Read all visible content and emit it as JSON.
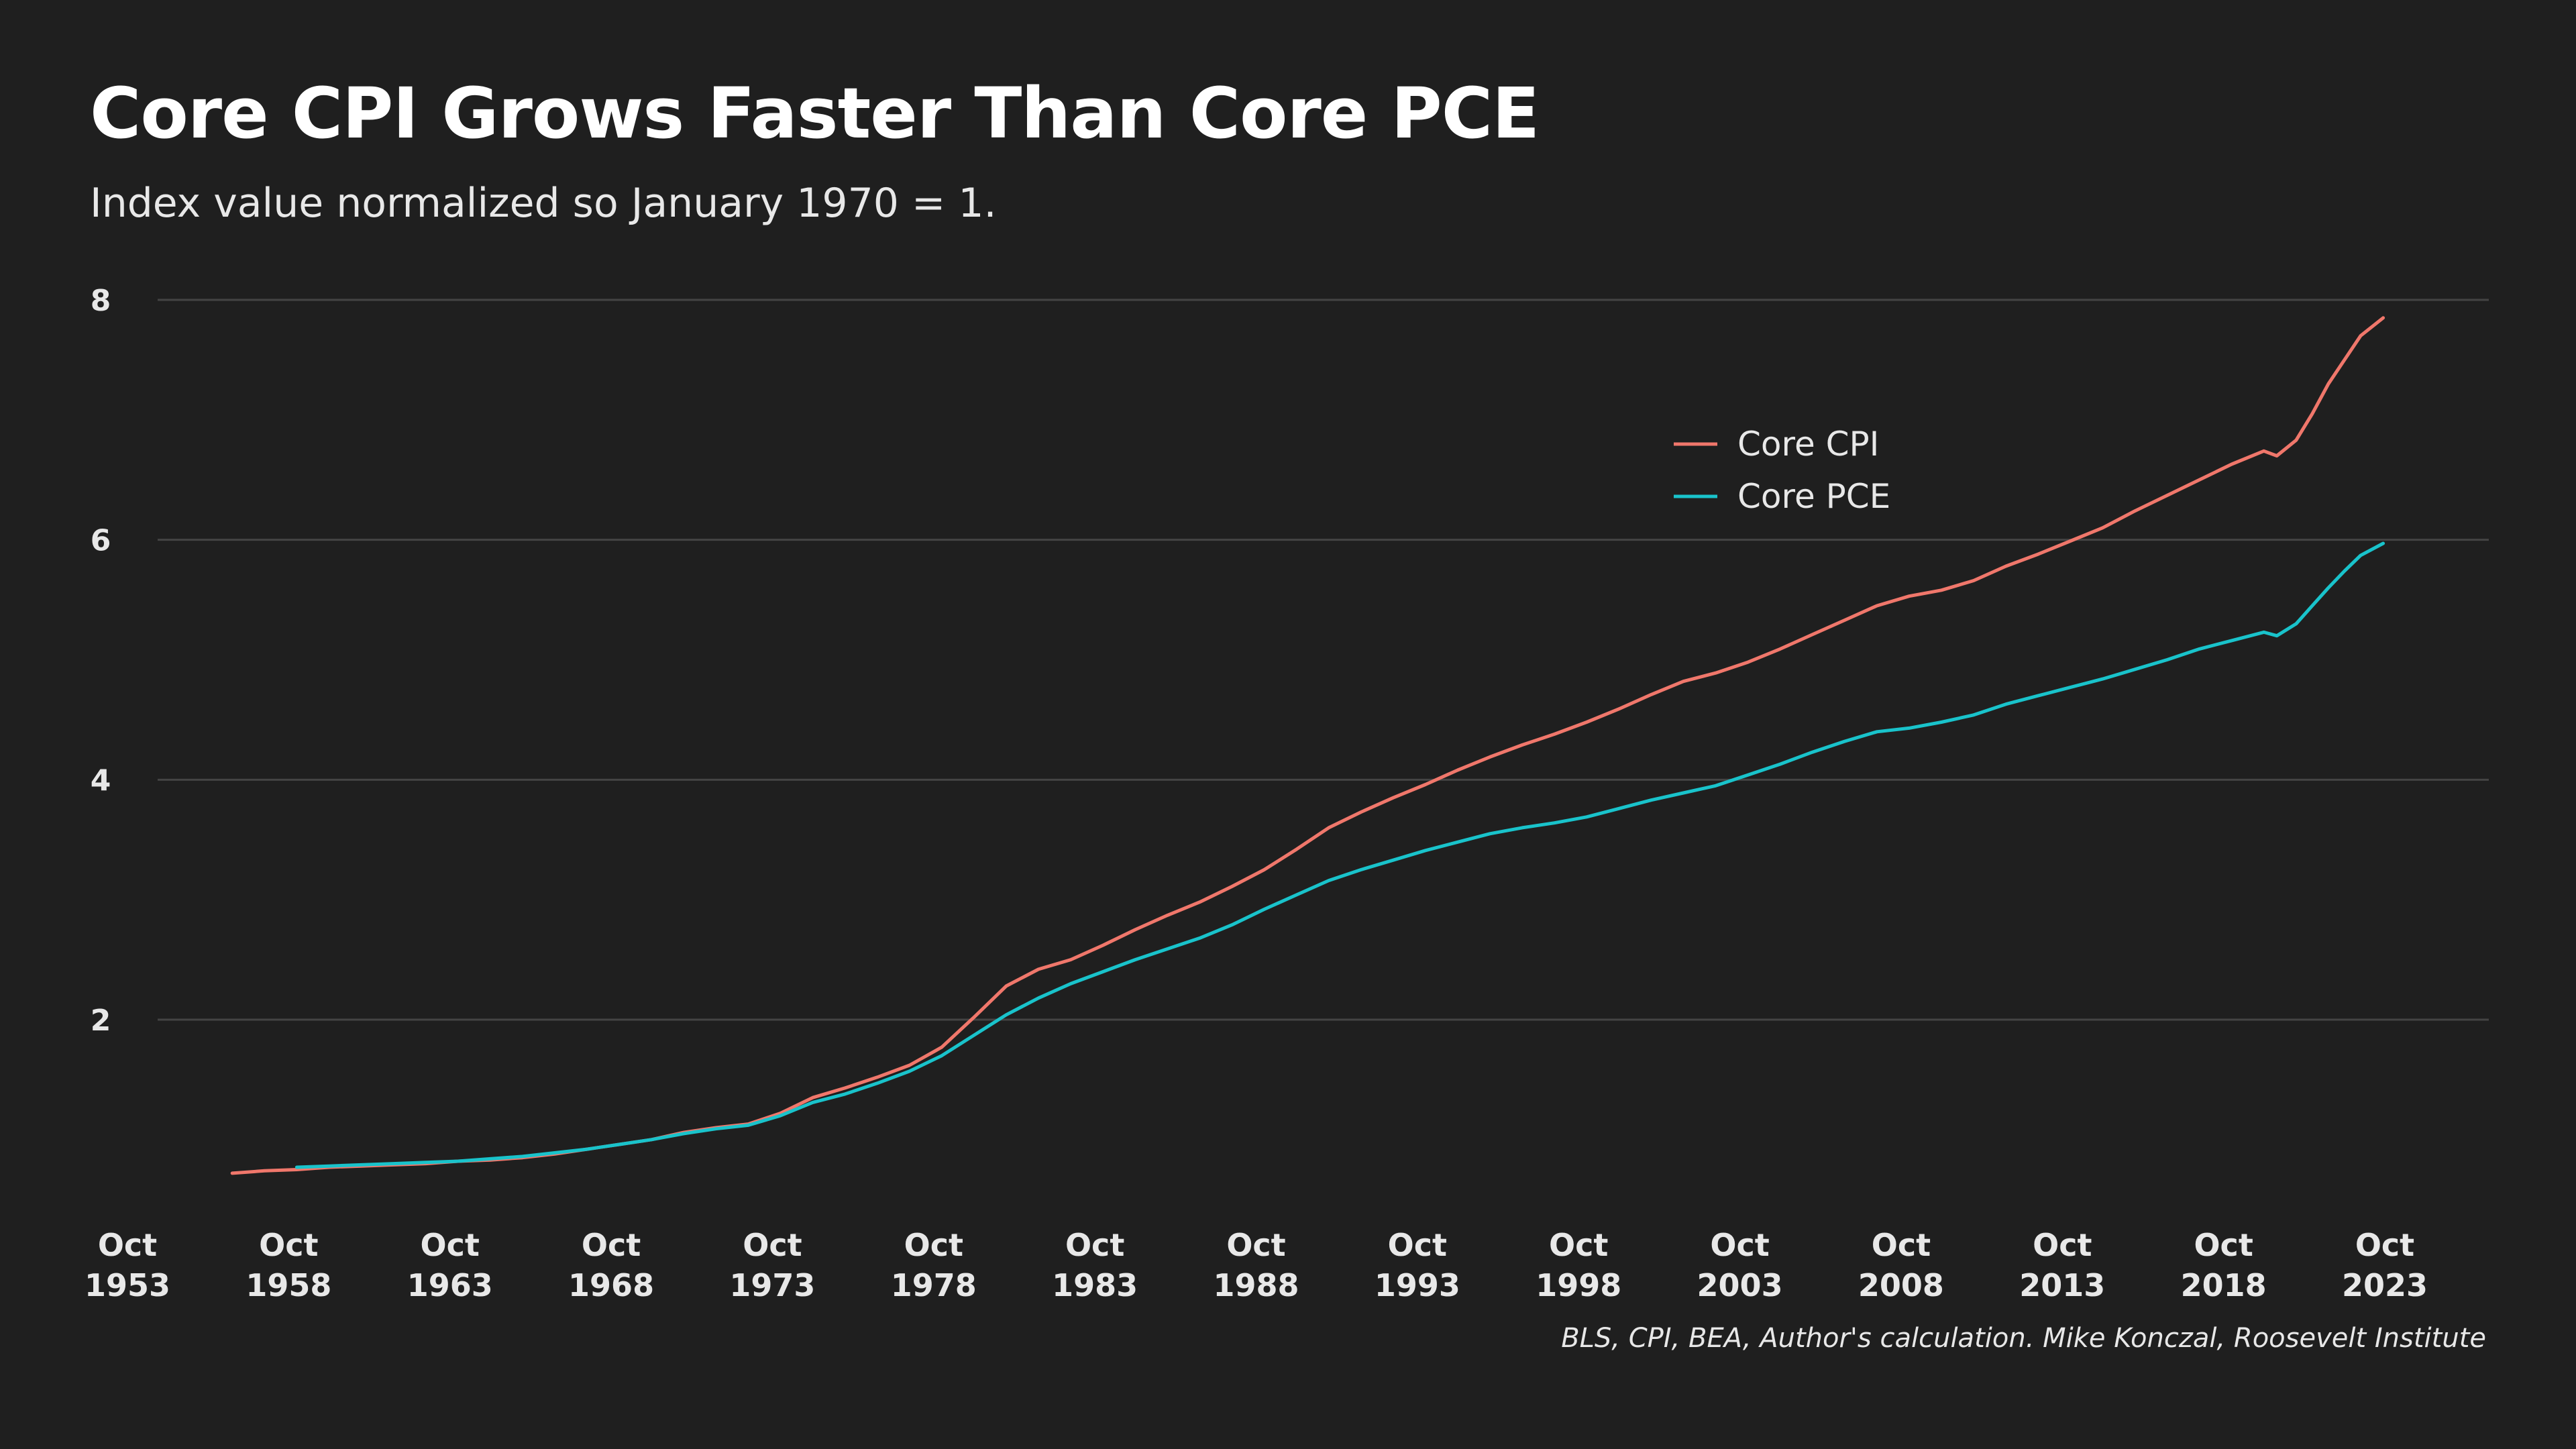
{
  "chart_data": {
    "type": "line",
    "title": "Core CPI Grows Faster Than Core PCE",
    "subtitle": "Index value normalized so January 1970 = 1.",
    "caption": "BLS, CPI, BEA, Author's calculation. Mike Konczal, Roosevelt Institute",
    "xlabel": "",
    "ylabel": "",
    "xlim": [
      1953.75,
      2023.75
    ],
    "ylim": [
      0.3,
      8.2
    ],
    "y_ticks": [
      2,
      4,
      6,
      8
    ],
    "x_ticks": [
      {
        "month": "Oct",
        "year": "1953",
        "value": 1953.75
      },
      {
        "month": "Oct",
        "year": "1958",
        "value": 1958.75
      },
      {
        "month": "Oct",
        "year": "1963",
        "value": 1963.75
      },
      {
        "month": "Oct",
        "year": "1968",
        "value": 1968.75
      },
      {
        "month": "Oct",
        "year": "1973",
        "value": 1973.75
      },
      {
        "month": "Oct",
        "year": "1978",
        "value": 1978.75
      },
      {
        "month": "Oct",
        "year": "1983",
        "value": 1983.75
      },
      {
        "month": "Oct",
        "year": "1988",
        "value": 1988.75
      },
      {
        "month": "Oct",
        "year": "1993",
        "value": 1993.75
      },
      {
        "month": "Oct",
        "year": "1998",
        "value": 1998.75
      },
      {
        "month": "Oct",
        "year": "2003",
        "value": 2003.75
      },
      {
        "month": "Oct",
        "year": "2008",
        "value": 2008.75
      },
      {
        "month": "Oct",
        "year": "2013",
        "value": 2013.75
      },
      {
        "month": "Oct",
        "year": "2018",
        "value": 2018.75
      },
      {
        "month": "Oct",
        "year": "2023",
        "value": 2023.75
      }
    ],
    "grid": "horizontal",
    "legend_position": "top-right",
    "series": [
      {
        "name": "Core CPI",
        "color": "#f0776b",
        "points": [
          [
            1957.0,
            0.72
          ],
          [
            1958.0,
            0.74
          ],
          [
            1959.0,
            0.75
          ],
          [
            1960.0,
            0.77
          ],
          [
            1961.0,
            0.78
          ],
          [
            1962.0,
            0.79
          ],
          [
            1963.0,
            0.8
          ],
          [
            1964.0,
            0.82
          ],
          [
            1965.0,
            0.83
          ],
          [
            1966.0,
            0.85
          ],
          [
            1967.0,
            0.88
          ],
          [
            1968.0,
            0.92
          ],
          [
            1969.0,
            0.96
          ],
          [
            1970.0,
            1.0
          ],
          [
            1971.0,
            1.06
          ],
          [
            1972.0,
            1.1
          ],
          [
            1973.0,
            1.13
          ],
          [
            1974.0,
            1.22
          ],
          [
            1975.0,
            1.35
          ],
          [
            1976.0,
            1.43
          ],
          [
            1977.0,
            1.52
          ],
          [
            1978.0,
            1.62
          ],
          [
            1979.0,
            1.77
          ],
          [
            1980.0,
            2.02
          ],
          [
            1981.0,
            2.28
          ],
          [
            1982.0,
            2.42
          ],
          [
            1983.0,
            2.5
          ],
          [
            1984.0,
            2.62
          ],
          [
            1985.0,
            2.75
          ],
          [
            1986.0,
            2.87
          ],
          [
            1987.0,
            2.98
          ],
          [
            1988.0,
            3.11
          ],
          [
            1989.0,
            3.25
          ],
          [
            1990.0,
            3.42
          ],
          [
            1991.0,
            3.6
          ],
          [
            1992.0,
            3.73
          ],
          [
            1993.0,
            3.85
          ],
          [
            1994.0,
            3.96
          ],
          [
            1995.0,
            4.08
          ],
          [
            1996.0,
            4.19
          ],
          [
            1997.0,
            4.29
          ],
          [
            1998.0,
            4.38
          ],
          [
            1999.0,
            4.48
          ],
          [
            2000.0,
            4.59
          ],
          [
            2001.0,
            4.71
          ],
          [
            2002.0,
            4.82
          ],
          [
            2003.0,
            4.89
          ],
          [
            2004.0,
            4.98
          ],
          [
            2005.0,
            5.09
          ],
          [
            2006.0,
            5.21
          ],
          [
            2007.0,
            5.33
          ],
          [
            2008.0,
            5.45
          ],
          [
            2009.0,
            5.53
          ],
          [
            2010.0,
            5.58
          ],
          [
            2011.0,
            5.66
          ],
          [
            2012.0,
            5.78
          ],
          [
            2013.0,
            5.88
          ],
          [
            2014.0,
            5.99
          ],
          [
            2015.0,
            6.1
          ],
          [
            2016.0,
            6.24
          ],
          [
            2017.0,
            6.37
          ],
          [
            2018.0,
            6.5
          ],
          [
            2019.0,
            6.63
          ],
          [
            2020.0,
            6.74
          ],
          [
            2020.4,
            6.7
          ],
          [
            2021.0,
            6.83
          ],
          [
            2021.5,
            7.05
          ],
          [
            2022.0,
            7.3
          ],
          [
            2022.5,
            7.5
          ],
          [
            2023.0,
            7.7
          ],
          [
            2023.7,
            7.85
          ]
        ]
      },
      {
        "name": "Core PCE",
        "color": "#19c3cb",
        "points": [
          [
            1959.0,
            0.77
          ],
          [
            1960.0,
            0.78
          ],
          [
            1961.0,
            0.79
          ],
          [
            1962.0,
            0.8
          ],
          [
            1963.0,
            0.81
          ],
          [
            1964.0,
            0.82
          ],
          [
            1965.0,
            0.84
          ],
          [
            1966.0,
            0.86
          ],
          [
            1967.0,
            0.89
          ],
          [
            1968.0,
            0.92
          ],
          [
            1969.0,
            0.96
          ],
          [
            1970.0,
            1.0
          ],
          [
            1971.0,
            1.05
          ],
          [
            1972.0,
            1.09
          ],
          [
            1973.0,
            1.12
          ],
          [
            1974.0,
            1.2
          ],
          [
            1975.0,
            1.31
          ],
          [
            1976.0,
            1.38
          ],
          [
            1977.0,
            1.47
          ],
          [
            1978.0,
            1.57
          ],
          [
            1979.0,
            1.7
          ],
          [
            1980.0,
            1.87
          ],
          [
            1981.0,
            2.04
          ],
          [
            1982.0,
            2.18
          ],
          [
            1983.0,
            2.3
          ],
          [
            1984.0,
            2.4
          ],
          [
            1985.0,
            2.5
          ],
          [
            1986.0,
            2.59
          ],
          [
            1987.0,
            2.68
          ],
          [
            1988.0,
            2.79
          ],
          [
            1989.0,
            2.92
          ],
          [
            1990.0,
            3.04
          ],
          [
            1991.0,
            3.16
          ],
          [
            1992.0,
            3.25
          ],
          [
            1993.0,
            3.33
          ],
          [
            1994.0,
            3.41
          ],
          [
            1995.0,
            3.48
          ],
          [
            1996.0,
            3.55
          ],
          [
            1997.0,
            3.6
          ],
          [
            1998.0,
            3.64
          ],
          [
            1999.0,
            3.69
          ],
          [
            2000.0,
            3.76
          ],
          [
            2001.0,
            3.83
          ],
          [
            2002.0,
            3.89
          ],
          [
            2003.0,
            3.95
          ],
          [
            2004.0,
            4.04
          ],
          [
            2005.0,
            4.13
          ],
          [
            2006.0,
            4.23
          ],
          [
            2007.0,
            4.32
          ],
          [
            2008.0,
            4.4
          ],
          [
            2009.0,
            4.43
          ],
          [
            2010.0,
            4.48
          ],
          [
            2011.0,
            4.54
          ],
          [
            2012.0,
            4.63
          ],
          [
            2013.0,
            4.7
          ],
          [
            2014.0,
            4.77
          ],
          [
            2015.0,
            4.84
          ],
          [
            2016.0,
            4.92
          ],
          [
            2017.0,
            5.0
          ],
          [
            2018.0,
            5.09
          ],
          [
            2019.0,
            5.16
          ],
          [
            2020.0,
            5.23
          ],
          [
            2020.4,
            5.2
          ],
          [
            2021.0,
            5.3
          ],
          [
            2021.5,
            5.45
          ],
          [
            2022.0,
            5.6
          ],
          [
            2022.5,
            5.74
          ],
          [
            2023.0,
            5.87
          ],
          [
            2023.7,
            5.97
          ]
        ]
      }
    ]
  }
}
